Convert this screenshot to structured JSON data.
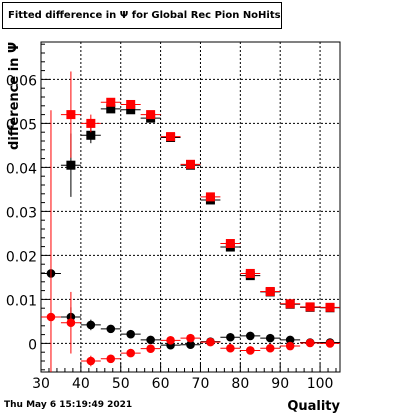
{
  "title": "Fitted difference in  Ψ  for Global Rec Pion NoHits",
  "timestamp": "Thu May  6 15:19:49 2021",
  "chart_data": {
    "type": "scatter",
    "title": "Fitted difference in  Ψ  for Global Rec Pion NoHits",
    "xlabel": "Quality",
    "ylabel": "difference in  Ψ",
    "xlim": [
      30,
      105
    ],
    "ylim": [
      -0.0065,
      0.0685
    ],
    "x_ticks": [
      30,
      40,
      50,
      60,
      70,
      80,
      90,
      100
    ],
    "y_ticks": [
      0,
      0.01,
      0.02,
      0.03,
      0.04,
      0.05,
      0.06
    ],
    "y_tick_labels": [
      "0",
      "0.01",
      "0.02",
      "0.03",
      "0.04",
      "0.05",
      "0.06"
    ],
    "grid": true,
    "series": [
      {
        "marker": "square",
        "color": "#000000",
        "points": [
          {
            "x": 37.5,
            "y": 0.0405,
            "xerr": 2.5,
            "yerr": 0.0072
          },
          {
            "x": 42.5,
            "y": 0.0473,
            "xerr": 2.5,
            "yerr": 0.0018
          },
          {
            "x": 47.5,
            "y": 0.0533,
            "xerr": 2.5,
            "yerr": 0.0006
          },
          {
            "x": 52.5,
            "y": 0.0531,
            "xerr": 2.5,
            "yerr": 0.0004
          },
          {
            "x": 57.5,
            "y": 0.0512,
            "xerr": 2.5,
            "yerr": 0.0003
          },
          {
            "x": 62.5,
            "y": 0.0468,
            "xerr": 2.5,
            "yerr": 0.0003
          },
          {
            "x": 67.5,
            "y": 0.0405,
            "xerr": 2.5,
            "yerr": 0.0003
          },
          {
            "x": 72.5,
            "y": 0.0326,
            "xerr": 2.5,
            "yerr": 0.0003
          },
          {
            "x": 77.5,
            "y": 0.0219,
            "xerr": 2.5,
            "yerr": 0.0003
          },
          {
            "x": 82.5,
            "y": 0.0154,
            "xerr": 2.5,
            "yerr": 0.0003
          },
          {
            "x": 87.5,
            "y": 0.0117,
            "xerr": 2.5,
            "yerr": 0.0002
          },
          {
            "x": 92.5,
            "y": 0.0089,
            "xerr": 2.5,
            "yerr": 0.0002
          },
          {
            "x": 97.5,
            "y": 0.0082,
            "xerr": 2.5,
            "yerr": 0.0002
          },
          {
            "x": 102.5,
            "y": 0.0081,
            "xerr": 2.5,
            "yerr": 0.0002
          }
        ]
      },
      {
        "marker": "square",
        "color": "#ff0000",
        "points": [
          {
            "x": 37.5,
            "y": 0.052,
            "xerr": 2.5,
            "yerr": 0.0098
          },
          {
            "x": 42.5,
            "y": 0.05,
            "xerr": 2.5,
            "yerr": 0.002
          },
          {
            "x": 47.5,
            "y": 0.0548,
            "xerr": 2.5,
            "yerr": 0.0007
          },
          {
            "x": 52.5,
            "y": 0.0543,
            "xerr": 2.5,
            "yerr": 0.0004
          },
          {
            "x": 57.5,
            "y": 0.052,
            "xerr": 2.5,
            "yerr": 0.0003
          },
          {
            "x": 62.5,
            "y": 0.047,
            "xerr": 2.5,
            "yerr": 0.0003
          },
          {
            "x": 67.5,
            "y": 0.0407,
            "xerr": 2.5,
            "yerr": 0.0003
          },
          {
            "x": 72.5,
            "y": 0.0333,
            "xerr": 2.5,
            "yerr": 0.0003
          },
          {
            "x": 77.5,
            "y": 0.0227,
            "xerr": 2.5,
            "yerr": 0.0003
          },
          {
            "x": 82.5,
            "y": 0.0159,
            "xerr": 2.5,
            "yerr": 0.0003
          },
          {
            "x": 87.5,
            "y": 0.0118,
            "xerr": 2.5,
            "yerr": 0.0002
          },
          {
            "x": 92.5,
            "y": 0.009,
            "xerr": 2.5,
            "yerr": 0.0002
          },
          {
            "x": 97.5,
            "y": 0.0083,
            "xerr": 2.5,
            "yerr": 0.0002
          },
          {
            "x": 102.5,
            "y": 0.0082,
            "xerr": 2.5,
            "yerr": 0.0002
          }
        ]
      },
      {
        "marker": "circle",
        "color": "#000000",
        "points": [
          {
            "x": 32.5,
            "y": 0.0159,
            "xerr": 2.5,
            "yerr": 0.0
          },
          {
            "x": 37.5,
            "y": 0.006,
            "xerr": 2.5,
            "yerr": 0.0022
          },
          {
            "x": 42.5,
            "y": 0.0042,
            "xerr": 2.5,
            "yerr": 0.0012
          },
          {
            "x": 47.5,
            "y": 0.0033,
            "xerr": 2.5,
            "yerr": 0.0004
          },
          {
            "x": 52.5,
            "y": 0.0021,
            "xerr": 2.5,
            "yerr": 0.0003
          },
          {
            "x": 57.5,
            "y": 0.0008,
            "xerr": 2.5,
            "yerr": 0.0002
          },
          {
            "x": 62.5,
            "y": -0.0004,
            "xerr": 2.5,
            "yerr": 0.0002
          },
          {
            "x": 67.5,
            "y": -0.0003,
            "xerr": 2.5,
            "yerr": 0.0002
          },
          {
            "x": 72.5,
            "y": 0.0004,
            "xerr": 2.5,
            "yerr": 0.0002
          },
          {
            "x": 77.5,
            "y": 0.0014,
            "xerr": 2.5,
            "yerr": 0.0002
          },
          {
            "x": 82.5,
            "y": 0.0017,
            "xerr": 2.5,
            "yerr": 0.0002
          },
          {
            "x": 87.5,
            "y": 0.0012,
            "xerr": 2.5,
            "yerr": 0.0002
          },
          {
            "x": 92.5,
            "y": 0.0008,
            "xerr": 2.5,
            "yerr": 0.0002
          },
          {
            "x": 97.5,
            "y": 0.0002,
            "xerr": 2.5,
            "yerr": 0.0001
          },
          {
            "x": 102.5,
            "y": 0.0002,
            "xerr": 2.5,
            "yerr": 0.0001
          }
        ]
      },
      {
        "marker": "circle",
        "color": "#ff0000",
        "points": [
          {
            "x": 32.5,
            "y": 0.006,
            "xerr": 2.5,
            "yerr": 0.047
          },
          {
            "x": 37.5,
            "y": 0.0047,
            "xerr": 2.5,
            "yerr": 0.007
          },
          {
            "x": 42.5,
            "y": -0.004,
            "xerr": 2.5,
            "yerr": 0.0012
          },
          {
            "x": 47.5,
            "y": -0.0035,
            "xerr": 2.5,
            "yerr": 0.0005
          },
          {
            "x": 52.5,
            "y": -0.0022,
            "xerr": 2.5,
            "yerr": 0.0003
          },
          {
            "x": 57.5,
            "y": -0.0012,
            "xerr": 2.5,
            "yerr": 0.0002
          },
          {
            "x": 62.5,
            "y": 0.0007,
            "xerr": 2.5,
            "yerr": 0.0002
          },
          {
            "x": 67.5,
            "y": 0.0012,
            "xerr": 2.5,
            "yerr": 0.0002
          },
          {
            "x": 72.5,
            "y": 0.0003,
            "xerr": 2.5,
            "yerr": 0.0002
          },
          {
            "x": 77.5,
            "y": -0.0011,
            "xerr": 2.5,
            "yerr": 0.0002
          },
          {
            "x": 82.5,
            "y": -0.0016,
            "xerr": 2.5,
            "yerr": 0.0002
          },
          {
            "x": 87.5,
            "y": -0.0011,
            "xerr": 2.5,
            "yerr": 0.0002
          },
          {
            "x": 92.5,
            "y": -0.0006,
            "xerr": 2.5,
            "yerr": 0.0002
          },
          {
            "x": 97.5,
            "y": 0.0001,
            "xerr": 2.5,
            "yerr": 0.0001
          },
          {
            "x": 102.5,
            "y": 0.0,
            "xerr": 2.5,
            "yerr": 0.0001
          }
        ]
      }
    ]
  }
}
